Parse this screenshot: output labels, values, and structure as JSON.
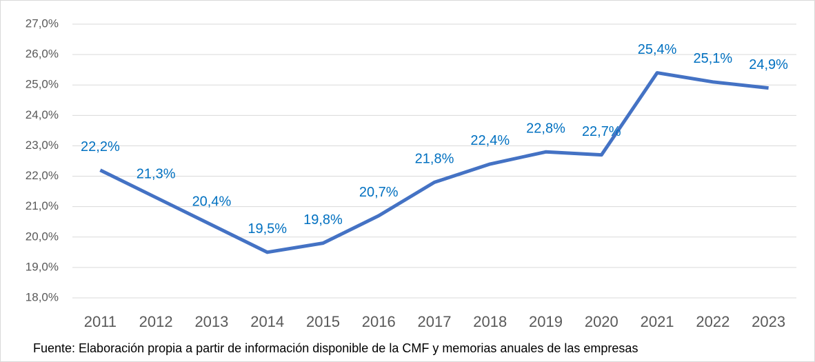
{
  "chart_data": {
    "type": "line",
    "categories": [
      "2011",
      "2012",
      "2013",
      "2014",
      "2015",
      "2016",
      "2017",
      "2018",
      "2019",
      "2020",
      "2021",
      "2022",
      "2023"
    ],
    "series": [
      {
        "name": null,
        "color": "#4472c4",
        "values": [
          22.2,
          21.3,
          20.4,
          19.5,
          19.8,
          20.7,
          21.8,
          22.4,
          22.8,
          22.7,
          25.4,
          25.1,
          24.9
        ],
        "value_labels": [
          "22,2%",
          "21,3%",
          "20,4%",
          "19,5%",
          "19,8%",
          "20,7%",
          "21,8%",
          "22,4%",
          "22,8%",
          "22,7%",
          "25,4%",
          "25,1%",
          "24,9%"
        ],
        "label_color": "#0070c0"
      }
    ],
    "ylim": [
      18,
      27
    ],
    "yticks": [
      {
        "value": 18,
        "label": "18,0%"
      },
      {
        "value": 19,
        "label": "19,0%"
      },
      {
        "value": 20,
        "label": "20,0%"
      },
      {
        "value": 21,
        "label": "21,0%"
      },
      {
        "value": 22,
        "label": "22,0%"
      },
      {
        "value": 23,
        "label": "23,0%"
      },
      {
        "value": 24,
        "label": "24,0%"
      },
      {
        "value": 25,
        "label": "25,0%"
      },
      {
        "value": 26,
        "label": "26,0%"
      },
      {
        "value": 27,
        "label": "27,0%"
      }
    ],
    "grid": true,
    "note": "Fuente: Elaboración propia a partir de información disponible de la CMF y memorias anuales de las empresas"
  }
}
